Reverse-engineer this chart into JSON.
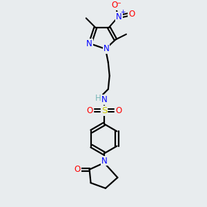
{
  "background_color": "#e8ecee",
  "bond_color": "#000000",
  "atom_colors": {
    "N": "#0000ff",
    "O": "#ff0000",
    "S": "#cccc00",
    "H": "#7ab8b8",
    "C": "#000000"
  },
  "figsize": [
    3.0,
    3.0
  ],
  "dpi": 100
}
